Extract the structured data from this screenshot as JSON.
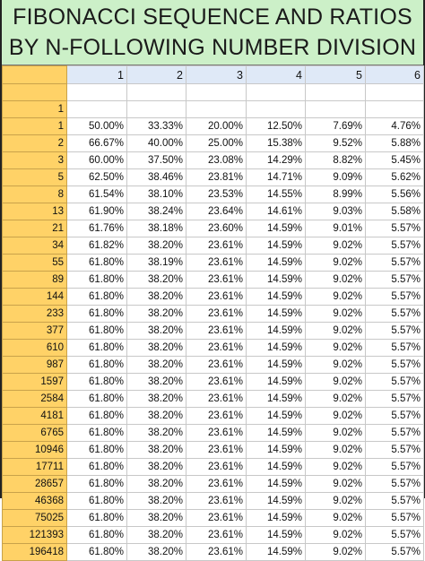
{
  "title": {
    "line1": "FIBONACCI SEQUENCE AND RATIOS",
    "line2": "BY N-FOLLOWING NUMBER DIVISION"
  },
  "column_headers": [
    "1",
    "2",
    "3",
    "4",
    "5",
    "6"
  ],
  "blank_row_label": "1",
  "rows": [
    {
      "n": "1",
      "values": [
        "50.00%",
        "33.33%",
        "20.00%",
        "12.50%",
        "7.69%",
        "4.76%"
      ]
    },
    {
      "n": "2",
      "values": [
        "66.67%",
        "40.00%",
        "25.00%",
        "15.38%",
        "9.52%",
        "5.88%"
      ]
    },
    {
      "n": "3",
      "values": [
        "60.00%",
        "37.50%",
        "23.08%",
        "14.29%",
        "8.82%",
        "5.45%"
      ]
    },
    {
      "n": "5",
      "values": [
        "62.50%",
        "38.46%",
        "23.81%",
        "14.71%",
        "9.09%",
        "5.62%"
      ]
    },
    {
      "n": "8",
      "values": [
        "61.54%",
        "38.10%",
        "23.53%",
        "14.55%",
        "8.99%",
        "5.56%"
      ]
    },
    {
      "n": "13",
      "values": [
        "61.90%",
        "38.24%",
        "23.64%",
        "14.61%",
        "9.03%",
        "5.58%"
      ]
    },
    {
      "n": "21",
      "values": [
        "61.76%",
        "38.18%",
        "23.60%",
        "14.59%",
        "9.01%",
        "5.57%"
      ]
    },
    {
      "n": "34",
      "values": [
        "61.82%",
        "38.20%",
        "23.61%",
        "14.59%",
        "9.02%",
        "5.57%"
      ]
    },
    {
      "n": "55",
      "values": [
        "61.80%",
        "38.19%",
        "23.61%",
        "14.59%",
        "9.02%",
        "5.57%"
      ]
    },
    {
      "n": "89",
      "values": [
        "61.80%",
        "38.20%",
        "23.61%",
        "14.59%",
        "9.02%",
        "5.57%"
      ]
    },
    {
      "n": "144",
      "values": [
        "61.80%",
        "38.20%",
        "23.61%",
        "14.59%",
        "9.02%",
        "5.57%"
      ]
    },
    {
      "n": "233",
      "values": [
        "61.80%",
        "38.20%",
        "23.61%",
        "14.59%",
        "9.02%",
        "5.57%"
      ]
    },
    {
      "n": "377",
      "values": [
        "61.80%",
        "38.20%",
        "23.61%",
        "14.59%",
        "9.02%",
        "5.57%"
      ]
    },
    {
      "n": "610",
      "values": [
        "61.80%",
        "38.20%",
        "23.61%",
        "14.59%",
        "9.02%",
        "5.57%"
      ]
    },
    {
      "n": "987",
      "values": [
        "61.80%",
        "38.20%",
        "23.61%",
        "14.59%",
        "9.02%",
        "5.57%"
      ]
    },
    {
      "n": "1597",
      "values": [
        "61.80%",
        "38.20%",
        "23.61%",
        "14.59%",
        "9.02%",
        "5.57%"
      ]
    },
    {
      "n": "2584",
      "values": [
        "61.80%",
        "38.20%",
        "23.61%",
        "14.59%",
        "9.02%",
        "5.57%"
      ]
    },
    {
      "n": "4181",
      "values": [
        "61.80%",
        "38.20%",
        "23.61%",
        "14.59%",
        "9.02%",
        "5.57%"
      ]
    },
    {
      "n": "6765",
      "values": [
        "61.80%",
        "38.20%",
        "23.61%",
        "14.59%",
        "9.02%",
        "5.57%"
      ]
    },
    {
      "n": "10946",
      "values": [
        "61.80%",
        "38.20%",
        "23.61%",
        "14.59%",
        "9.02%",
        "5.57%"
      ]
    },
    {
      "n": "17711",
      "values": [
        "61.80%",
        "38.20%",
        "23.61%",
        "14.59%",
        "9.02%",
        "5.57%"
      ]
    },
    {
      "n": "28657",
      "values": [
        "61.80%",
        "38.20%",
        "23.61%",
        "14.59%",
        "9.02%",
        "5.57%"
      ]
    },
    {
      "n": "46368",
      "values": [
        "61.80%",
        "38.20%",
        "23.61%",
        "14.59%",
        "9.02%",
        "5.57%"
      ]
    },
    {
      "n": "75025",
      "values": [
        "61.80%",
        "38.20%",
        "23.61%",
        "14.59%",
        "9.02%",
        "5.57%"
      ]
    },
    {
      "n": "121393",
      "values": [
        "61.80%",
        "38.20%",
        "23.61%",
        "14.59%",
        "9.02%",
        "5.57%"
      ]
    },
    {
      "n": "196418",
      "values": [
        "61.80%",
        "38.20%",
        "23.61%",
        "14.59%",
        "9.02%",
        "5.57%"
      ]
    }
  ],
  "colors": {
    "title_bg": "#ccf0c8",
    "row_header_bg": "#ffd267",
    "column_header_bg": "#dfe9f7"
  }
}
